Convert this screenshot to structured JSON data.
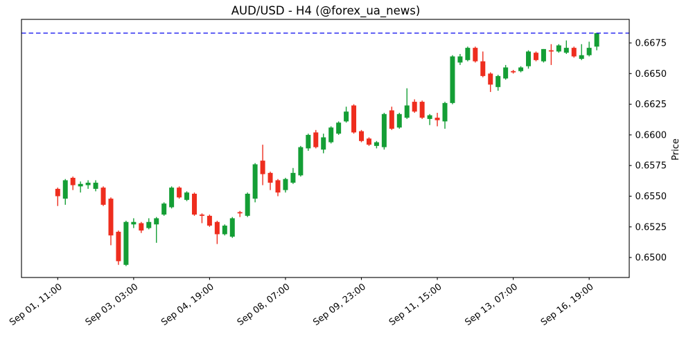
{
  "title": "AUD/USD - H4 (@forex_ua_news)",
  "colors": {
    "up": "#149e35",
    "down": "#ee2d1e",
    "hline": "#0000ee",
    "axis": "#000000",
    "background": "#ffffff"
  },
  "y_axis": {
    "label": "Price",
    "side": "right",
    "tick_labels": [
      "0.6500",
      "0.6525",
      "0.6550",
      "0.6575",
      "0.6600",
      "0.6625",
      "0.6650",
      "0.6675"
    ],
    "tick_values": [
      0.65,
      0.6525,
      0.655,
      0.6575,
      0.66,
      0.6625,
      0.665,
      0.6675
    ]
  },
  "x_axis": {
    "tick_indices": [
      0,
      10,
      20,
      30,
      40,
      50,
      60,
      70
    ],
    "tick_labels": [
      "Sep 01, 11:00",
      "Sep 03, 03:00",
      "Sep 04, 19:00",
      "Sep 08, 07:00",
      "Sep 09, 23:00",
      "Sep 11, 15:00",
      "Sep 13, 07:00",
      "Sep 16, 19:00"
    ],
    "label_rotation_deg": 37
  },
  "hline": {
    "value": 0.6683,
    "style": "dashed"
  },
  "chart_data": {
    "type": "candlestick",
    "symbol": "AUD/USD",
    "timeframe": "H4",
    "title": "AUD/USD - H4 (@forex_ua_news)",
    "ylabel": "Price",
    "ylim": [
      0.64837,
      0.66942
    ],
    "grid": false,
    "legend": "none",
    "candle_count": 72,
    "x_tick_labels": [
      "Sep 01, 11:00",
      "Sep 03, 03:00",
      "Sep 04, 19:00",
      "Sep 08, 07:00",
      "Sep 09, 23:00",
      "Sep 11, 15:00",
      "Sep 13, 07:00",
      "Sep 16, 19:00"
    ],
    "reference_level": 0.6683,
    "ohlc": [
      [
        0.6556,
        0.6557,
        0.6542,
        0.655
      ],
      [
        0.6548,
        0.6564,
        0.6543,
        0.6563
      ],
      [
        0.6565,
        0.6566,
        0.6555,
        0.6559
      ],
      [
        0.6558,
        0.6562,
        0.6553,
        0.656
      ],
      [
        0.6559,
        0.6563,
        0.6556,
        0.6561
      ],
      [
        0.6556,
        0.6563,
        0.6554,
        0.6561
      ],
      [
        0.6557,
        0.6558,
        0.6542,
        0.6543
      ],
      [
        0.6548,
        0.6549,
        0.651,
        0.6518
      ],
      [
        0.6521,
        0.6522,
        0.6494,
        0.6497
      ],
      [
        0.6494,
        0.653,
        0.6493,
        0.6529
      ],
      [
        0.6527,
        0.6532,
        0.6524,
        0.6529
      ],
      [
        0.6528,
        0.6529,
        0.652,
        0.6522
      ],
      [
        0.6524,
        0.6532,
        0.6523,
        0.6529
      ],
      [
        0.6527,
        0.6533,
        0.6512,
        0.6532
      ],
      [
        0.6535,
        0.6545,
        0.6534,
        0.6544
      ],
      [
        0.6541,
        0.6558,
        0.654,
        0.6557
      ],
      [
        0.6557,
        0.6558,
        0.6548,
        0.6549
      ],
      [
        0.6547,
        0.6554,
        0.6546,
        0.6553
      ],
      [
        0.6552,
        0.6553,
        0.6534,
        0.6535
      ],
      [
        0.6535,
        0.6536,
        0.6528,
        0.6534
      ],
      [
        0.6534,
        0.6535,
        0.6525,
        0.6526
      ],
      [
        0.6529,
        0.653,
        0.6511,
        0.6519
      ],
      [
        0.6519,
        0.6527,
        0.6518,
        0.6526
      ],
      [
        0.6517,
        0.6533,
        0.6516,
        0.6532
      ],
      [
        0.6537,
        0.6538,
        0.6533,
        0.6536
      ],
      [
        0.6534,
        0.6553,
        0.6533,
        0.6552
      ],
      [
        0.6548,
        0.6577,
        0.6545,
        0.6576
      ],
      [
        0.6579,
        0.6592,
        0.6559,
        0.6568
      ],
      [
        0.6569,
        0.657,
        0.6555,
        0.6561
      ],
      [
        0.6563,
        0.6564,
        0.655,
        0.6553
      ],
      [
        0.6555,
        0.6565,
        0.6553,
        0.6564
      ],
      [
        0.6561,
        0.6573,
        0.656,
        0.6569
      ],
      [
        0.6567,
        0.6591,
        0.6566,
        0.659
      ],
      [
        0.6589,
        0.6601,
        0.6587,
        0.66
      ],
      [
        0.6602,
        0.6604,
        0.6589,
        0.659
      ],
      [
        0.6588,
        0.6601,
        0.6585,
        0.6598
      ],
      [
        0.6594,
        0.6607,
        0.6593,
        0.6606
      ],
      [
        0.6601,
        0.6611,
        0.66,
        0.661
      ],
      [
        0.6611,
        0.6623,
        0.661,
        0.6619
      ],
      [
        0.6624,
        0.6625,
        0.6601,
        0.6602
      ],
      [
        0.6603,
        0.6604,
        0.6594,
        0.6595
      ],
      [
        0.6597,
        0.6598,
        0.6591,
        0.6592
      ],
      [
        0.6591,
        0.6595,
        0.6589,
        0.6594
      ],
      [
        0.659,
        0.6618,
        0.6588,
        0.6617
      ],
      [
        0.662,
        0.6623,
        0.6604,
        0.6605
      ],
      [
        0.6606,
        0.6618,
        0.6605,
        0.6617
      ],
      [
        0.6614,
        0.6638,
        0.6613,
        0.6624
      ],
      [
        0.6627,
        0.6629,
        0.6618,
        0.6619
      ],
      [
        0.6627,
        0.6628,
        0.6613,
        0.6614
      ],
      [
        0.6613,
        0.6617,
        0.6608,
        0.6616
      ],
      [
        0.6614,
        0.6618,
        0.6607,
        0.6612
      ],
      [
        0.6611,
        0.6627,
        0.6605,
        0.6626
      ],
      [
        0.6626,
        0.6665,
        0.6625,
        0.6664
      ],
      [
        0.6659,
        0.6666,
        0.6657,
        0.6664
      ],
      [
        0.6661,
        0.6672,
        0.666,
        0.6671
      ],
      [
        0.6671,
        0.6672,
        0.6659,
        0.666
      ],
      [
        0.666,
        0.6668,
        0.6647,
        0.6648
      ],
      [
        0.665,
        0.6651,
        0.6635,
        0.6641
      ],
      [
        0.6639,
        0.6649,
        0.6636,
        0.6648
      ],
      [
        0.6646,
        0.6657,
        0.6645,
        0.6655
      ],
      [
        0.6652,
        0.6653,
        0.665,
        0.6651
      ],
      [
        0.6652,
        0.6656,
        0.6651,
        0.6655
      ],
      [
        0.6656,
        0.6669,
        0.6654,
        0.6668
      ],
      [
        0.6667,
        0.6668,
        0.666,
        0.6661
      ],
      [
        0.666,
        0.667,
        0.6659,
        0.667
      ],
      [
        0.6669,
        0.6674,
        0.6657,
        0.6668
      ],
      [
        0.6668,
        0.6674,
        0.6667,
        0.6673
      ],
      [
        0.6667,
        0.6677,
        0.6666,
        0.6671
      ],
      [
        0.6671,
        0.6672,
        0.6663,
        0.6664
      ],
      [
        0.6662,
        0.6674,
        0.6661,
        0.6665
      ],
      [
        0.6665,
        0.6676,
        0.6664,
        0.6671
      ],
      [
        0.6672,
        0.6683,
        0.6669,
        0.6683
      ]
    ]
  }
}
